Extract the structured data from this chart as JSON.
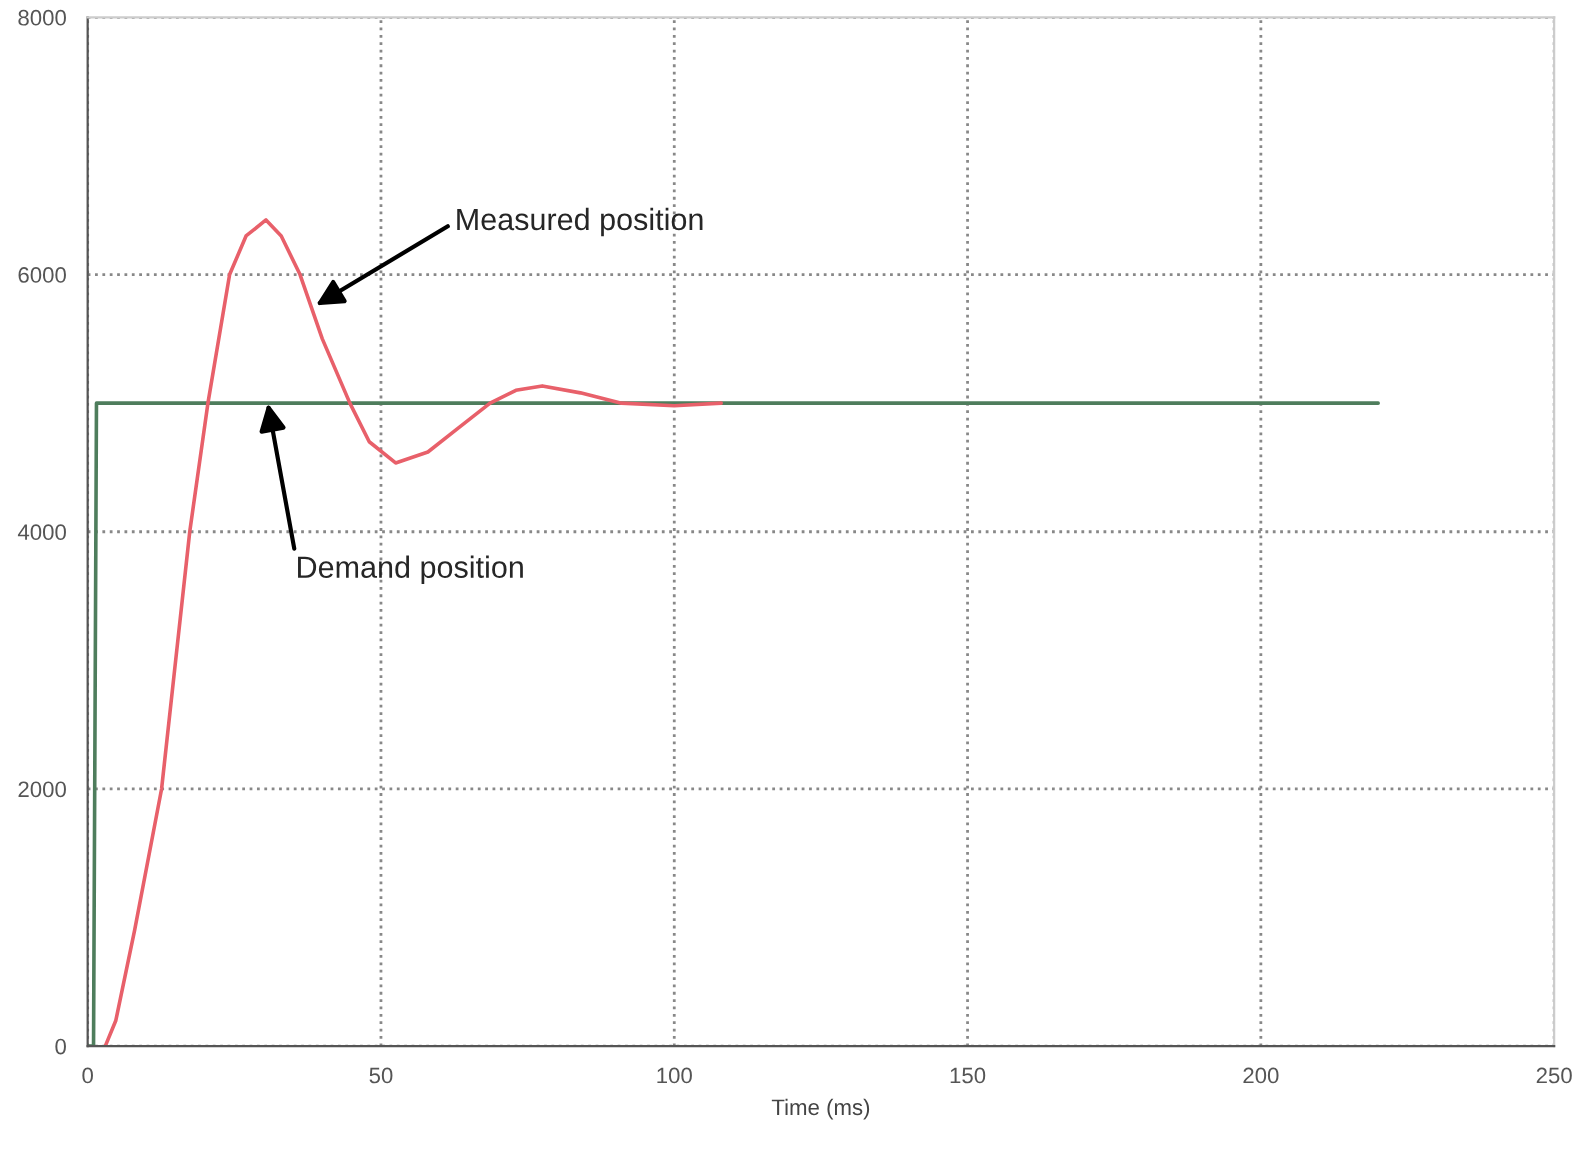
{
  "chart_data": {
    "type": "line",
    "xlabel": "Time (ms)",
    "xlim": [
      0,
      250
    ],
    "xticks": [
      0,
      50,
      100,
      150,
      200,
      250
    ],
    "ylim": [
      0,
      8000
    ],
    "yticks": [
      0,
      2000,
      4000,
      6000,
      8000
    ],
    "grid": true,
    "marker": "none",
    "line_style": "solid",
    "series": [
      {
        "color": "#4e7d5c",
        "x": [
          0,
          1,
          1.5,
          220
        ],
        "values": [
          0,
          0,
          5000,
          5000
        ]
      },
      {
        "color": "#e8606a",
        "x": [
          3,
          4.8,
          8,
          12.6,
          15,
          17.4,
          20.5,
          24.2,
          27,
          30.4,
          33,
          36.2,
          40,
          44.7,
          48,
          52.5,
          58,
          63,
          68.6,
          73,
          77.5,
          84,
          91,
          100,
          108
        ],
        "values": [
          0,
          200,
          900,
          2000,
          3000,
          4000,
          5000,
          6000,
          6300,
          6425,
          6300,
          6000,
          5500,
          5000,
          4700,
          4535,
          4620,
          4800,
          5000,
          5100,
          5134,
          5080,
          5000,
          4980,
          5000
        ]
      }
    ],
    "annotations": [
      {
        "text": "Measured position",
        "x": 38.9,
        "y": 5760
      },
      {
        "text": "Demand position",
        "x": 30.7,
        "y": 5000
      }
    ]
  }
}
